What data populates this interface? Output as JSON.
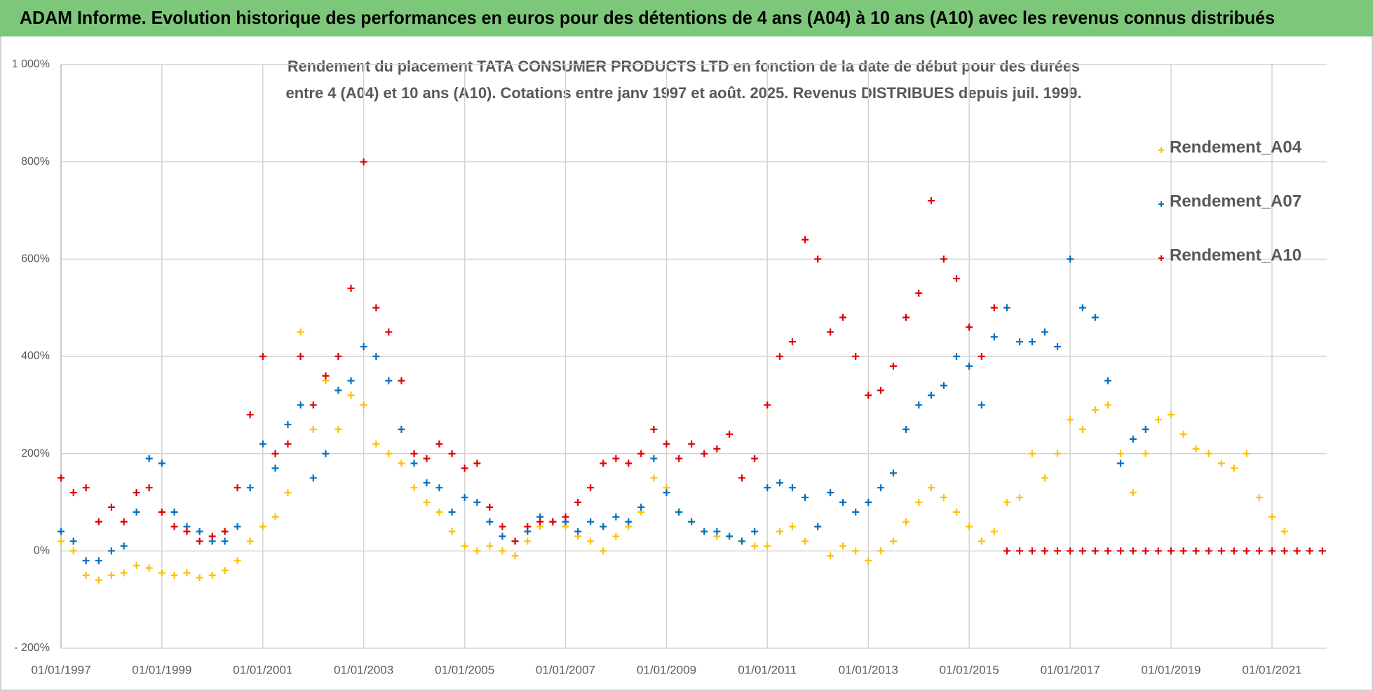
{
  "chart_data": {
    "type": "scatter",
    "title": "ADAM Informe. Evolution historique des performances en euros pour des détentions de 4 ans (A04) à 10 ans (A10) avec les revenus connus distribués",
    "subtitle": [
      "Rendement du placement TATA CONSUMER PRODUCTS LTD en fonction de la date de début pour des durées",
      "entre 4 (A04) et 10 ans (A10).  Cotations entre janv 1997 et août. 2025. Revenus DISTRIBUES depuis juil. 1999."
    ],
    "x": [
      "01/01/1997",
      "01/04/1997",
      "01/07/1997",
      "01/10/1997",
      "01/01/1998",
      "01/04/1998",
      "01/07/1998",
      "01/10/1998",
      "01/01/1999",
      "01/04/1999",
      "01/07/1999",
      "01/10/1999",
      "01/01/2000",
      "01/04/2000",
      "01/07/2000",
      "01/10/2000",
      "01/01/2001",
      "01/04/2001",
      "01/07/2001",
      "01/10/2001",
      "01/01/2002",
      "01/04/2002",
      "01/07/2002",
      "01/10/2002",
      "01/01/2003",
      "01/04/2003",
      "01/07/2003",
      "01/10/2003",
      "01/01/2004",
      "01/04/2004",
      "01/07/2004",
      "01/10/2004",
      "01/01/2005",
      "01/04/2005",
      "01/07/2005",
      "01/10/2005",
      "01/01/2006",
      "01/04/2006",
      "01/07/2006",
      "01/10/2006",
      "01/01/2007",
      "01/04/2007",
      "01/07/2007",
      "01/10/2007",
      "01/01/2008",
      "01/04/2008",
      "01/07/2008",
      "01/10/2008",
      "01/01/2009",
      "01/04/2009",
      "01/07/2009",
      "01/10/2009",
      "01/01/2010",
      "01/04/2010",
      "01/07/2010",
      "01/10/2010",
      "01/01/2011",
      "01/04/2011",
      "01/07/2011",
      "01/10/2011",
      "01/01/2012",
      "01/04/2012",
      "01/07/2012",
      "01/10/2012",
      "01/01/2013",
      "01/04/2013",
      "01/07/2013",
      "01/10/2013",
      "01/01/2014",
      "01/04/2014",
      "01/07/2014",
      "01/10/2014",
      "01/01/2015",
      "01/04/2015",
      "01/07/2015",
      "01/10/2015",
      "01/01/2016",
      "01/04/2016",
      "01/07/2016",
      "01/10/2016",
      "01/01/2017",
      "01/04/2017",
      "01/07/2017",
      "01/10/2017",
      "01/01/2018",
      "01/04/2018",
      "01/07/2018",
      "01/10/2018",
      "01/01/2019",
      "01/04/2019",
      "01/07/2019",
      "01/10/2019",
      "01/01/2020",
      "01/04/2020",
      "01/07/2020",
      "01/10/2020",
      "01/01/2021",
      "01/04/2021",
      "01/07/2021",
      "01/10/2021",
      "01/01/2022"
    ],
    "series": [
      {
        "name": "Rendement_A04",
        "color": "#ffc000",
        "values": [
          20,
          0,
          -50,
          -60,
          -50,
          -45,
          -30,
          -35,
          -45,
          -50,
          -45,
          -55,
          -50,
          -40,
          -20,
          20,
          50,
          70,
          120,
          450,
          250,
          350,
          250,
          320,
          300,
          220,
          200,
          180,
          130,
          100,
          80,
          40,
          10,
          0,
          10,
          0,
          -10,
          20,
          50,
          60,
          50,
          30,
          20,
          0,
          30,
          50,
          80,
          150,
          130,
          80,
          60,
          40,
          30,
          30,
          20,
          10,
          10,
          40,
          50,
          20,
          50,
          -10,
          10,
          0,
          -20,
          0,
          20,
          60,
          100,
          130,
          110,
          80,
          50,
          20,
          40,
          100,
          110,
          200,
          150,
          200,
          270,
          250,
          290,
          300,
          200,
          120,
          200,
          270,
          280,
          240,
          210,
          200,
          180,
          170,
          200,
          110,
          70,
          40,
          null,
          null,
          null
        ]
      },
      {
        "name": "Rendement_A07",
        "color": "#0070c0",
        "values": [
          40,
          20,
          -20,
          -20,
          0,
          10,
          80,
          190,
          180,
          80,
          50,
          40,
          20,
          20,
          50,
          130,
          220,
          170,
          260,
          300,
          150,
          200,
          330,
          350,
          420,
          400,
          350,
          250,
          180,
          140,
          130,
          80,
          110,
          100,
          60,
          30,
          20,
          40,
          70,
          60,
          60,
          40,
          60,
          50,
          70,
          60,
          90,
          190,
          120,
          80,
          60,
          40,
          40,
          30,
          20,
          40,
          130,
          140,
          130,
          110,
          50,
          120,
          100,
          80,
          100,
          130,
          160,
          250,
          300,
          320,
          340,
          400,
          380,
          300,
          440,
          500,
          430,
          430,
          450,
          420,
          600,
          500,
          480,
          350,
          180,
          230,
          250,
          null,
          null,
          null,
          null,
          null,
          null,
          null,
          null,
          null,
          null,
          null,
          null,
          null,
          null
        ]
      },
      {
        "name": "Rendement_A10",
        "color": "#e00000",
        "values": [
          150,
          120,
          130,
          60,
          90,
          60,
          120,
          130,
          80,
          50,
          40,
          20,
          30,
          40,
          130,
          280,
          400,
          200,
          220,
          400,
          300,
          360,
          400,
          540,
          800,
          500,
          450,
          350,
          200,
          190,
          220,
          200,
          170,
          180,
          90,
          50,
          20,
          50,
          60,
          60,
          70,
          100,
          130,
          180,
          190,
          180,
          200,
          250,
          220,
          190,
          220,
          200,
          210,
          240,
          150,
          190,
          300,
          400,
          430,
          640,
          600,
          450,
          480,
          400,
          320,
          330,
          380,
          480,
          530,
          720,
          600,
          560,
          460,
          400,
          500,
          0,
          0,
          0,
          0,
          0,
          0,
          0,
          0,
          0,
          0,
          0,
          0,
          0,
          0,
          0,
          0,
          0,
          0,
          0,
          0,
          0,
          0,
          0,
          0,
          0,
          0
        ]
      }
    ],
    "xlim": [
      "01/01/1997",
      "01/02/2022"
    ],
    "xticks": [
      "01/01/1997",
      "01/01/1999",
      "01/01/2001",
      "01/01/2003",
      "01/01/2005",
      "01/01/2007",
      "01/01/2009",
      "01/01/2011",
      "01/01/2013",
      "01/01/2015",
      "01/01/2017",
      "01/01/2019",
      "01/01/2021"
    ],
    "ylim": [
      -200,
      1000
    ],
    "yticks": [
      {
        "value": -200,
        "label": "- 200%"
      },
      {
        "value": 0,
        "label": "0%"
      },
      {
        "value": 200,
        "label": "200%"
      },
      {
        "value": 400,
        "label": "400%"
      },
      {
        "value": 600,
        "label": "600%"
      },
      {
        "value": 800,
        "label": "800%"
      },
      {
        "value": 1000,
        "label": "1 000%"
      }
    ],
    "grid": true,
    "legend": "upper right"
  }
}
